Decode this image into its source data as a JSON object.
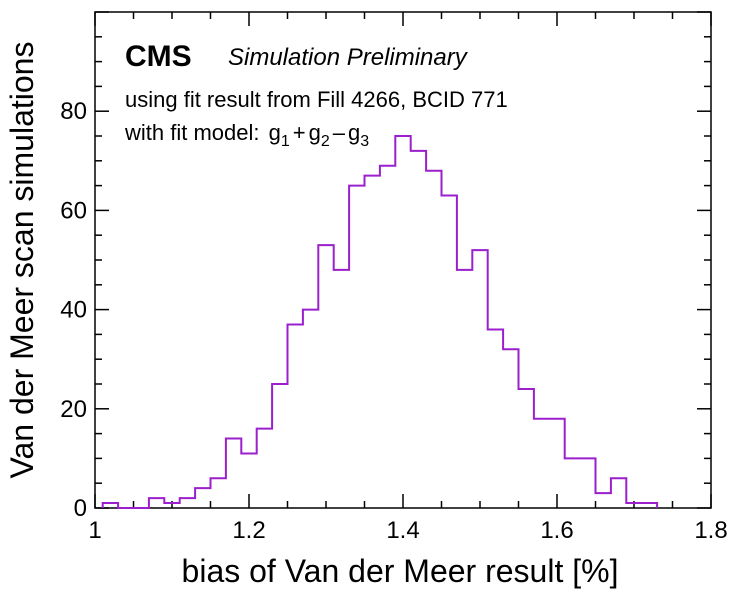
{
  "chart_data": {
    "type": "histogram",
    "title": "",
    "xlabel": "bias of Van der Meer result [%]",
    "ylabel": "Van der Meer scan simulations",
    "xlim": [
      1.0,
      1.8
    ],
    "ylim": [
      0,
      100
    ],
    "xticks": [
      1,
      1.2,
      1.4,
      1.6,
      1.8
    ],
    "xtick_labels": [
      "1",
      "1.2",
      "1.4",
      "1.6",
      "1.8"
    ],
    "yticks": [
      0,
      20,
      40,
      60,
      80
    ],
    "ytick_labels": [
      "0",
      "20",
      "40",
      "60",
      "80"
    ],
    "bin_start": 1.01,
    "bin_width": 0.02,
    "counts": [
      1,
      0,
      0,
      2,
      1,
      2,
      4,
      6,
      14,
      11,
      16,
      25,
      37,
      40,
      53,
      48,
      65,
      67,
      69,
      75,
      72,
      68,
      63,
      48,
      52,
      36,
      32,
      24,
      18,
      18,
      10,
      10,
      3,
      6,
      1,
      1
    ],
    "line_color": "#9b1fcc",
    "grid": false
  },
  "annotations": {
    "experiment": "CMS",
    "status": "Simulation Preliminary",
    "line1": "using fit result from Fill 4266, BCID 771",
    "line2_prefix": "with fit model: ",
    "model_terms": [
      {
        "base": "g",
        "sub": "1"
      },
      {
        "op": "+"
      },
      {
        "base": "g",
        "sub": "2"
      },
      {
        "op": "–"
      },
      {
        "base": "g",
        "sub": "3"
      }
    ]
  }
}
